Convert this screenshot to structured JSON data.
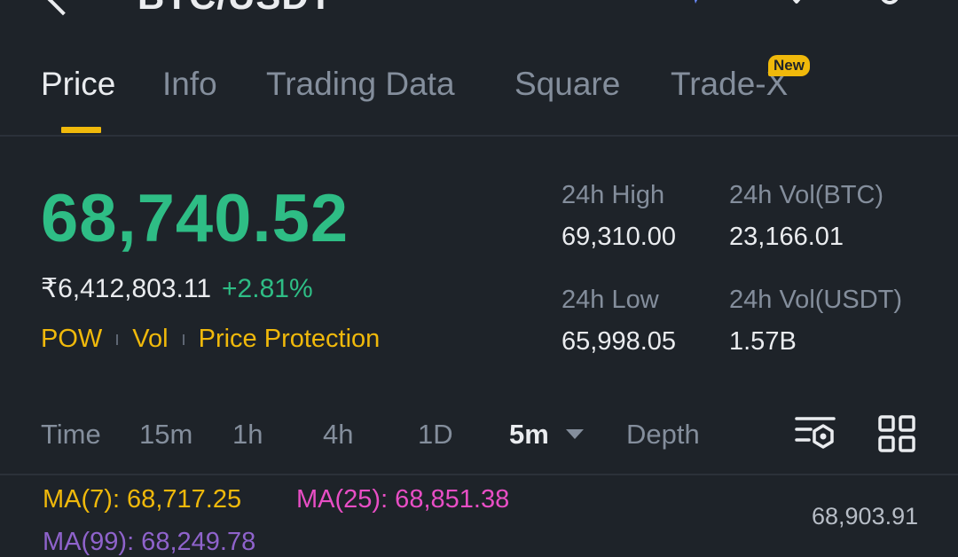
{
  "header": {
    "pair_title": "BTC/USDT"
  },
  "tabs": [
    {
      "label": "Price",
      "active": true
    },
    {
      "label": "Info"
    },
    {
      "label": "Trading Data"
    },
    {
      "label": "Square"
    },
    {
      "label": "Trade-X",
      "badge": "New"
    }
  ],
  "ticker": {
    "last_price": "68,740.52",
    "fiat_price": "₹6,412,803.11",
    "change_pct": "+2.81%",
    "tags": [
      "POW",
      "Vol",
      "Price Protection"
    ]
  },
  "stats": {
    "high_label": "24h High",
    "high_value": "69,310.00",
    "vol_btc_label": "24h Vol(BTC)",
    "vol_btc_value": "23,166.01",
    "low_label": "24h Low",
    "low_value": "65,998.05",
    "vol_usdt_label": "24h Vol(USDT)",
    "vol_usdt_value": "1.57B"
  },
  "intervals": {
    "items": [
      "Time",
      "15m",
      "1h",
      "4h",
      "1D",
      "5m",
      "Depth"
    ],
    "selected": "5m"
  },
  "chart_overlay": {
    "ma7": "MA(7): 68,717.25",
    "ma25": "MA(25): 68,851.38",
    "ma99": "MA(99): 68,249.78",
    "axis_top_price": "68,903.91"
  },
  "colors": {
    "background": "#1e2329",
    "accent": "#f0b90b",
    "positive": "#2ebd85",
    "ma25": "#e84ec5",
    "ma99": "#9c6ade"
  },
  "icons": {
    "back": "back-arrow-icon",
    "ai": "ai-sparkle-icon",
    "favorite": "star-icon",
    "share": "share-icon",
    "chart_settings": "chart-settings-icon",
    "layout": "grid-icon"
  }
}
